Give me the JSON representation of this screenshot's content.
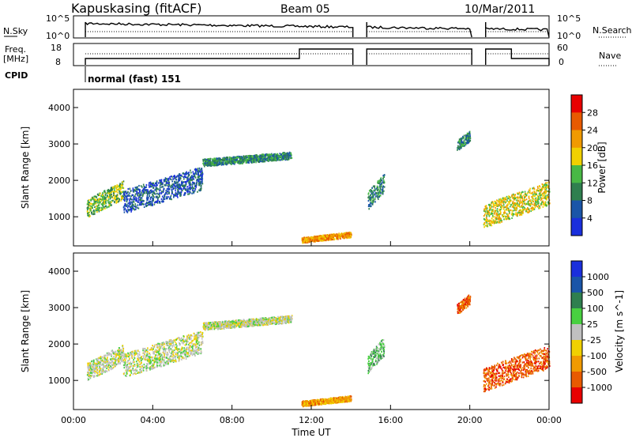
{
  "header": {
    "station": "Kapuskasing (fitACF)",
    "beam": "Beam 05",
    "date": "10/Mar/2011"
  },
  "summary": {
    "nsky_label": "N.Sky",
    "nsky_ticks": [
      "10^5",
      "10^0"
    ],
    "nsearch_label": "N.Search",
    "nsearch_ticks": [
      "10^5",
      "10^0"
    ],
    "freq_label": "Freq.",
    "freq_unit": "[MHz]",
    "freq_ticks": [
      "18",
      "8"
    ],
    "nave_label": "Nave",
    "nave_ticks": [
      "60",
      "0"
    ],
    "cpid_label": "CPID",
    "cpid_value": "normal (fast) 151"
  },
  "chart_data": [
    {
      "type": "heatmap",
      "title": "",
      "xlabel": "",
      "ylabel": "Slant Range [km]",
      "ylim": [
        200,
        4500
      ],
      "xlim": [
        "00:00",
        "00:00"
      ],
      "yticks": [
        "1000",
        "2000",
        "3000",
        "4000"
      ],
      "colorbar": {
        "label": "Power [dB]",
        "ticks": [
          "4",
          "8",
          "12",
          "16",
          "20",
          "24",
          "28"
        ],
        "colors": [
          "#1a2fdc",
          "#1a55a8",
          "#2f7f4f",
          "#48b845",
          "#f0d000",
          "#f09a00",
          "#e85a00",
          "#e80000"
        ]
      },
      "regions": [
        {
          "from": "00:40",
          "to": "02:30",
          "range_km": [
            1000,
            2000
          ],
          "power_db": 14
        },
        {
          "from": "02:30",
          "to": "06:30",
          "range_km": [
            1100,
            2400
          ],
          "power_db": 8
        },
        {
          "from": "06:30",
          "to": "11:00",
          "range_km": [
            2400,
            2800
          ],
          "power_db": 10
        },
        {
          "from": "11:30",
          "to": "14:00",
          "range_km": [
            300,
            600
          ],
          "power_db": 22
        },
        {
          "from": "14:50",
          "to": "15:40",
          "range_km": [
            1200,
            2200
          ],
          "power_db": 10
        },
        {
          "from": "19:20",
          "to": "20:00",
          "range_km": [
            2800,
            3400
          ],
          "power_db": 10
        },
        {
          "from": "20:40",
          "to": "00:00",
          "range_km": [
            700,
            2000
          ],
          "power_db": 18
        }
      ]
    },
    {
      "type": "heatmap",
      "title": "",
      "xlabel": "Time UT",
      "ylabel": "Slant Range [km]",
      "ylim": [
        200,
        4500
      ],
      "xlim": [
        "00:00",
        "00:00"
      ],
      "xticks": [
        "00:00",
        "04:00",
        "08:00",
        "12:00",
        "16:00",
        "20:00",
        "00:00"
      ],
      "yticks": [
        "1000",
        "2000",
        "3000",
        "4000"
      ],
      "colorbar": {
        "label": "Velocity [m s^-1]",
        "ticks": [
          "1000",
          "500",
          "100",
          "25",
          "-25",
          "-100",
          "-500",
          "-1000"
        ],
        "colors": [
          "#1a2fdc",
          "#1a55a8",
          "#2f7f4f",
          "#48d040",
          "#c0c0c0",
          "#f0d000",
          "#f09a00",
          "#e85a00",
          "#e80000"
        ]
      },
      "regions": [
        {
          "from": "00:40",
          "to": "02:30",
          "range_km": [
            1000,
            2000
          ],
          "velocity_ms": -25
        },
        {
          "from": "02:30",
          "to": "06:30",
          "range_km": [
            1100,
            2400
          ],
          "velocity_ms": 0
        },
        {
          "from": "06:30",
          "to": "11:00",
          "range_km": [
            2400,
            2800
          ],
          "velocity_ms": 0
        },
        {
          "from": "11:30",
          "to": "14:00",
          "range_km": [
            300,
            600
          ],
          "velocity_ms": -100
        },
        {
          "from": "14:50",
          "to": "15:40",
          "range_km": [
            1200,
            2200
          ],
          "velocity_ms": 100
        },
        {
          "from": "19:20",
          "to": "20:00",
          "range_km": [
            2800,
            3400
          ],
          "velocity_ms": -500
        },
        {
          "from": "20:40",
          "to": "00:00",
          "range_km": [
            700,
            2000
          ],
          "velocity_ms": -500
        }
      ]
    }
  ]
}
